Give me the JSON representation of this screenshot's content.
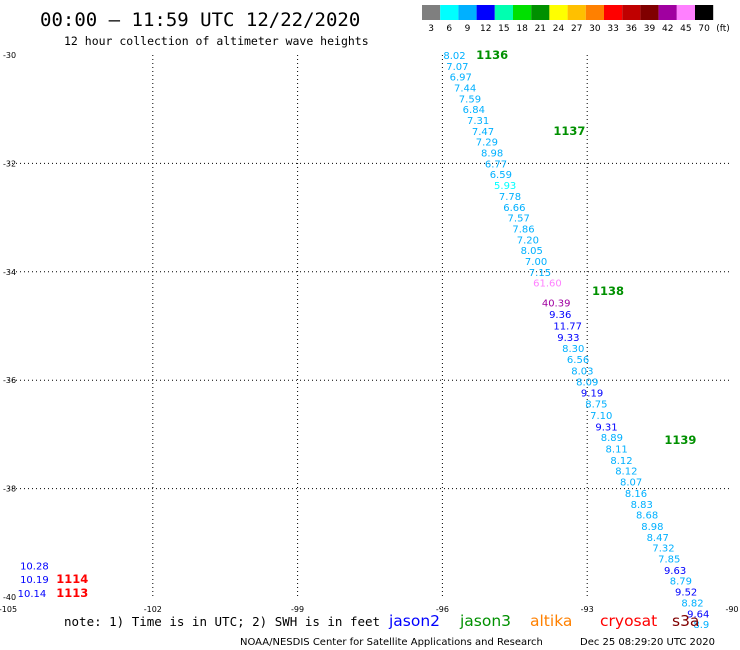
{
  "header": {
    "title": "00:00 — 11:59 UTC 12/22/2020",
    "subtitle": "12 hour collection of altimeter wave heights"
  },
  "colorbar": {
    "unit": "(ft)",
    "labels": [
      "3",
      "6",
      "9",
      "12",
      "15",
      "18",
      "21",
      "24",
      "27",
      "30",
      "33",
      "36",
      "39",
      "42",
      "45",
      "70"
    ],
    "colors": [
      "#7f7f7f",
      "#00ffff",
      "#00b0ff",
      "#0000ff",
      "#00ffb0",
      "#00e000",
      "#009000",
      "#ffff00",
      "#ffc000",
      "#ff8000",
      "#ff0000",
      "#c00000",
      "#800000",
      "#a000a0",
      "#ff80ff",
      "#000000"
    ]
  },
  "footer": {
    "note": "note: 1) Time is in UTC; 2) SWH is in feet",
    "credit": "NOAA/NESDIS Center for Satellite Applications and Research",
    "timestamp": "Dec 25 08:29:20 UTC 2020"
  },
  "chart_data": {
    "type": "scatter",
    "xlim": [
      -105,
      -90
    ],
    "ylim": [
      -40,
      -30
    ],
    "grid": true,
    "x_ticks": [
      -105,
      -102,
      -99,
      -96,
      -93,
      -90
    ],
    "x_tick_labels": [
      "-105",
      "-102",
      "-99",
      "-96",
      "-93",
      "-90"
    ],
    "y_ticks": [
      -30,
      -32,
      -34,
      -36,
      -38,
      -40
    ],
    "y_tick_labels": [
      "-30",
      "-32",
      "-34",
      "-36",
      "-38",
      "-40"
    ],
    "legend": [
      {
        "label": "jason2",
        "color": "#0000ff"
      },
      {
        "label": "jason3",
        "color": "#009000"
      },
      {
        "label": "altika",
        "color": "#ff8000"
      },
      {
        "label": "cryosat",
        "color": "#ff0000"
      },
      {
        "label": "s3a",
        "color": "#800000"
      }
    ],
    "time_labels": [
      {
        "label": "1136",
        "lon": -95.3,
        "lat": -30.0,
        "color": "#009000"
      },
      {
        "label": "1137",
        "lon": -93.7,
        "lat": -31.4,
        "color": "#009000"
      },
      {
        "label": "1138",
        "lon": -92.9,
        "lat": -34.35,
        "color": "#009000"
      },
      {
        "label": "1139",
        "lon": -91.4,
        "lat": -37.1,
        "color": "#009000"
      },
      {
        "label": "1114",
        "lon": -104.0,
        "lat": -39.67,
        "color": "#ff0000"
      },
      {
        "label": "1113",
        "lon": -104.0,
        "lat": -39.93,
        "color": "#ff0000"
      }
    ],
    "series": [
      {
        "name": "jason3",
        "points": [
          {
            "lon": -95.98,
            "lat": -30.0,
            "value": "8.02",
            "color": "#00b0ff"
          },
          {
            "lon": -95.92,
            "lat": -30.2,
            "value": "7.07",
            "color": "#00b0ff"
          },
          {
            "lon": -95.85,
            "lat": -30.4,
            "value": "6.97",
            "color": "#00b0ff"
          },
          {
            "lon": -95.76,
            "lat": -30.6,
            "value": "7.44",
            "color": "#00b0ff"
          },
          {
            "lon": -95.66,
            "lat": -30.8,
            "value": "7.59",
            "color": "#00b0ff"
          },
          {
            "lon": -95.58,
            "lat": -31.0,
            "value": "6.84",
            "color": "#00b0ff"
          },
          {
            "lon": -95.49,
            "lat": -31.2,
            "value": "7.31",
            "color": "#00b0ff"
          },
          {
            "lon": -95.39,
            "lat": -31.4,
            "value": "7.47",
            "color": "#00b0ff"
          },
          {
            "lon": -95.31,
            "lat": -31.6,
            "value": "7.29",
            "color": "#00b0ff"
          },
          {
            "lon": -95.2,
            "lat": -31.8,
            "value": "8.98",
            "color": "#00b0ff"
          },
          {
            "lon": -95.12,
            "lat": -32.0,
            "value": "6.77",
            "color": "#00b0ff"
          },
          {
            "lon": -95.02,
            "lat": -32.2,
            "value": "6.59",
            "color": "#00b0ff"
          },
          {
            "lon": -94.93,
            "lat": -32.4,
            "value": "5.93",
            "color": "#00ffff"
          },
          {
            "lon": -94.83,
            "lat": -32.6,
            "value": "7.78",
            "color": "#00b0ff"
          },
          {
            "lon": -94.74,
            "lat": -32.8,
            "value": "6.66",
            "color": "#00b0ff"
          },
          {
            "lon": -94.65,
            "lat": -33.0,
            "value": "7.57",
            "color": "#00b0ff"
          },
          {
            "lon": -94.55,
            "lat": -33.2,
            "value": "7.86",
            "color": "#00b0ff"
          },
          {
            "lon": -94.46,
            "lat": -33.4,
            "value": "7.20",
            "color": "#00b0ff"
          },
          {
            "lon": -94.38,
            "lat": -33.6,
            "value": "8.05",
            "color": "#00b0ff"
          },
          {
            "lon": -94.29,
            "lat": -33.8,
            "value": "7.00",
            "color": "#00b0ff"
          },
          {
            "lon": -94.21,
            "lat": -34.0,
            "value": "7.15",
            "color": "#00b0ff"
          },
          {
            "lon": -94.12,
            "lat": -34.2,
            "value": "61.60",
            "color": "#ff80ff"
          },
          {
            "lon": -93.94,
            "lat": -34.57,
            "value": "40.39",
            "color": "#a000a0"
          },
          {
            "lon": -93.79,
            "lat": -34.78,
            "value": "9.36",
            "color": "#0000ff"
          },
          {
            "lon": -93.7,
            "lat": -34.99,
            "value": "11.77",
            "color": "#0000ff"
          },
          {
            "lon": -93.62,
            "lat": -35.2,
            "value": "9.33",
            "color": "#0000ff"
          },
          {
            "lon": -93.52,
            "lat": -35.41,
            "value": "8.30",
            "color": "#00b0ff"
          },
          {
            "lon": -93.42,
            "lat": -35.61,
            "value": "6.56",
            "color": "#00b0ff"
          },
          {
            "lon": -93.33,
            "lat": -35.82,
            "value": "8.03",
            "color": "#00b0ff"
          },
          {
            "lon": -93.23,
            "lat": -36.02,
            "value": "8.09",
            "color": "#00b0ff"
          },
          {
            "lon": -93.13,
            "lat": -36.23,
            "value": "9.19",
            "color": "#0000ff"
          },
          {
            "lon": -93.04,
            "lat": -36.43,
            "value": "8.75",
            "color": "#00b0ff"
          },
          {
            "lon": -92.94,
            "lat": -36.64,
            "value": "7.10",
            "color": "#00b0ff"
          },
          {
            "lon": -92.83,
            "lat": -36.85,
            "value": "9.31",
            "color": "#0000ff"
          },
          {
            "lon": -92.72,
            "lat": -37.05,
            "value": "8.89",
            "color": "#00b0ff"
          },
          {
            "lon": -92.62,
            "lat": -37.26,
            "value": "8.11",
            "color": "#00b0ff"
          },
          {
            "lon": -92.52,
            "lat": -37.47,
            "value": "8.12",
            "color": "#00b0ff"
          },
          {
            "lon": -92.42,
            "lat": -37.67,
            "value": "8.12",
            "color": "#00b0ff"
          },
          {
            "lon": -92.32,
            "lat": -37.87,
            "value": "8.07",
            "color": "#00b0ff"
          },
          {
            "lon": -92.22,
            "lat": -38.08,
            "value": "8.16",
            "color": "#00b0ff"
          },
          {
            "lon": -92.1,
            "lat": -38.28,
            "value": "8.83",
            "color": "#00b0ff"
          },
          {
            "lon": -91.99,
            "lat": -38.48,
            "value": "8.68",
            "color": "#00b0ff"
          },
          {
            "lon": -91.88,
            "lat": -38.69,
            "value": "8.98",
            "color": "#00b0ff"
          },
          {
            "lon": -91.77,
            "lat": -38.89,
            "value": "8.47",
            "color": "#00b0ff"
          },
          {
            "lon": -91.65,
            "lat": -39.09,
            "value": "7.32",
            "color": "#00b0ff"
          },
          {
            "lon": -91.53,
            "lat": -39.29,
            "value": "7.85",
            "color": "#00b0ff"
          },
          {
            "lon": -91.41,
            "lat": -39.5,
            "value": "9.63",
            "color": "#0000ff"
          },
          {
            "lon": -91.29,
            "lat": -39.7,
            "value": "8.79",
            "color": "#00b0ff"
          },
          {
            "lon": -91.18,
            "lat": -39.9,
            "value": "9.52",
            "color": "#0000ff"
          },
          {
            "lon": -91.05,
            "lat": -40.1,
            "value": "8.82",
            "color": "#00b0ff"
          },
          {
            "lon": -90.93,
            "lat": -40.3,
            "value": "9.64",
            "color": "#0000ff"
          },
          {
            "lon": -90.8,
            "lat": -40.5,
            "value": "8.9",
            "color": "#00b0ff"
          }
        ]
      },
      {
        "name": "cryosat",
        "points": [
          {
            "lon": -104.75,
            "lat": -39.42,
            "value": "10.28",
            "color": "#0000ff"
          },
          {
            "lon": -104.75,
            "lat": -39.67,
            "value": "10.19",
            "color": "#0000ff"
          },
          {
            "lon": -104.8,
            "lat": -39.93,
            "value": "10.14",
            "color": "#0000ff"
          }
        ]
      }
    ]
  }
}
